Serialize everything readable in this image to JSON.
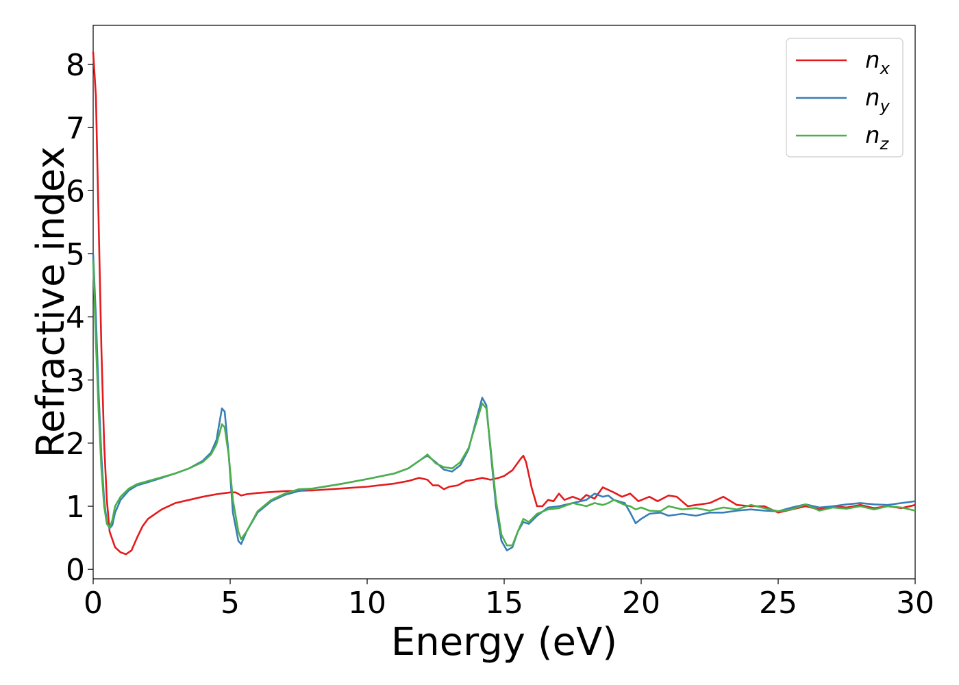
{
  "chart_data": {
    "type": "line",
    "xlabel": "Energy (eV)",
    "ylabel": "Refractive index",
    "xlim": [
      0,
      30
    ],
    "ylim": [
      -0.15,
      8.62
    ],
    "xticks": [
      0,
      5,
      10,
      15,
      20,
      25,
      30
    ],
    "yticks": [
      0,
      1,
      2,
      3,
      4,
      5,
      6,
      7,
      8
    ],
    "legend": "upper right",
    "series": [
      {
        "name": "nx",
        "color": "#e41a1c",
        "x": [
          0,
          0.1,
          0.2,
          0.3,
          0.4,
          0.5,
          0.6,
          0.8,
          1.0,
          1.2,
          1.4,
          1.6,
          1.8,
          2.0,
          2.5,
          3,
          3.5,
          4,
          4.5,
          5,
          5.2,
          5.4,
          5.6,
          6,
          7,
          8,
          9,
          10,
          11,
          11.5,
          11.9,
          12.2,
          12.4,
          12.6,
          12.8,
          13,
          13.3,
          13.6,
          13.9,
          14.2,
          14.5,
          14.8,
          15,
          15.3,
          15.6,
          15.7,
          15.8,
          16,
          16.2,
          16.4,
          16.6,
          16.8,
          17,
          17.2,
          17.5,
          17.8,
          18,
          18.3,
          18.6,
          19,
          19.3,
          19.6,
          19.9,
          20.3,
          20.6,
          21,
          21.3,
          21.7,
          22,
          22.5,
          23,
          23.5,
          24,
          24.5,
          25,
          25.5,
          26,
          26.5,
          27,
          27.5,
          28,
          28.5,
          29,
          29.5,
          30
        ],
        "values": [
          8.2,
          7.5,
          5.5,
          3.5,
          2.0,
          1.1,
          0.6,
          0.35,
          0.27,
          0.24,
          0.3,
          0.5,
          0.68,
          0.8,
          0.95,
          1.05,
          1.1,
          1.15,
          1.19,
          1.22,
          1.22,
          1.17,
          1.19,
          1.21,
          1.24,
          1.25,
          1.28,
          1.31,
          1.36,
          1.4,
          1.45,
          1.42,
          1.33,
          1.33,
          1.27,
          1.31,
          1.33,
          1.4,
          1.42,
          1.45,
          1.42,
          1.45,
          1.48,
          1.57,
          1.75,
          1.8,
          1.7,
          1.3,
          1.0,
          1.0,
          1.1,
          1.08,
          1.2,
          1.1,
          1.15,
          1.1,
          1.18,
          1.12,
          1.3,
          1.22,
          1.15,
          1.2,
          1.08,
          1.15,
          1.08,
          1.17,
          1.15,
          1.0,
          1.02,
          1.05,
          1.15,
          1.02,
          1.0,
          1.0,
          0.9,
          0.95,
          1.0,
          0.95,
          1.0,
          0.98,
          1.02,
          0.97,
          1.0,
          0.97,
          1.02
        ]
      },
      {
        "name": "ny",
        "color": "#377eb8",
        "x": [
          0,
          0.1,
          0.2,
          0.3,
          0.4,
          0.5,
          0.6,
          0.7,
          0.8,
          1.0,
          1.3,
          1.6,
          2,
          2.5,
          3,
          3.5,
          4,
          4.3,
          4.5,
          4.7,
          4.8,
          4.95,
          5.1,
          5.3,
          5.4,
          5.6,
          6,
          6.5,
          7,
          7.5,
          8,
          9,
          10,
          11,
          11.5,
          12,
          12.2,
          12.5,
          12.8,
          13.1,
          13.4,
          13.7,
          14,
          14.2,
          14.35,
          14.5,
          14.7,
          14.9,
          15.1,
          15.3,
          15.5,
          15.7,
          15.9,
          16.2,
          16.6,
          17,
          17.5,
          18,
          18.3,
          18.6,
          18.8,
          19,
          19.4,
          19.6,
          19.8,
          20,
          20.3,
          20.7,
          21,
          21.5,
          22,
          22.5,
          23,
          23.5,
          24,
          24.5,
          25,
          25.5,
          26,
          26.5,
          27,
          27.5,
          28,
          28.5,
          29,
          29.5,
          30
        ],
        "values": [
          5.0,
          4.0,
          2.8,
          1.8,
          1.1,
          0.75,
          0.65,
          0.7,
          0.9,
          1.1,
          1.25,
          1.33,
          1.38,
          1.45,
          1.52,
          1.6,
          1.72,
          1.85,
          2.05,
          2.55,
          2.5,
          1.8,
          0.9,
          0.45,
          0.4,
          0.6,
          0.9,
          1.08,
          1.18,
          1.24,
          1.28,
          1.35,
          1.43,
          1.52,
          1.6,
          1.75,
          1.8,
          1.7,
          1.58,
          1.55,
          1.65,
          1.9,
          2.4,
          2.72,
          2.6,
          1.9,
          1.0,
          0.45,
          0.3,
          0.35,
          0.6,
          0.75,
          0.72,
          0.85,
          0.98,
          1.0,
          1.05,
          1.1,
          1.2,
          1.15,
          1.17,
          1.1,
          1.05,
          0.9,
          0.73,
          0.8,
          0.88,
          0.9,
          0.85,
          0.88,
          0.85,
          0.9,
          0.9,
          0.93,
          0.95,
          0.93,
          0.92,
          0.98,
          1.03,
          0.98,
          1.0,
          1.03,
          1.05,
          1.03,
          1.02,
          1.05,
          1.08
        ]
      },
      {
        "name": "nz",
        "color": "#4daf4a",
        "x": [
          0,
          0.1,
          0.2,
          0.3,
          0.4,
          0.5,
          0.6,
          0.7,
          0.8,
          1.0,
          1.3,
          1.6,
          2,
          2.5,
          3,
          3.5,
          4,
          4.3,
          4.5,
          4.7,
          4.8,
          4.95,
          5.1,
          5.3,
          5.4,
          5.6,
          6,
          6.5,
          7,
          7.5,
          8,
          9,
          10,
          11,
          11.5,
          12,
          12.2,
          12.5,
          12.8,
          13.1,
          13.4,
          13.7,
          14,
          14.2,
          14.35,
          14.5,
          14.7,
          14.9,
          15.1,
          15.3,
          15.5,
          15.7,
          15.9,
          16.2,
          16.6,
          17,
          17.5,
          18,
          18.3,
          18.6,
          18.8,
          19,
          19.4,
          19.6,
          19.8,
          20,
          20.3,
          20.7,
          21,
          21.5,
          22,
          22.5,
          23,
          23.5,
          24,
          24.5,
          25,
          25.5,
          26,
          26.5,
          27,
          27.5,
          28,
          28.5,
          29,
          29.5,
          30
        ],
        "values": [
          4.9,
          3.6,
          2.5,
          1.6,
          1.0,
          0.72,
          0.66,
          0.78,
          1.0,
          1.15,
          1.28,
          1.35,
          1.4,
          1.46,
          1.52,
          1.6,
          1.7,
          1.82,
          1.98,
          2.3,
          2.25,
          1.8,
          1.1,
          0.6,
          0.48,
          0.6,
          0.92,
          1.1,
          1.2,
          1.27,
          1.28,
          1.35,
          1.43,
          1.52,
          1.6,
          1.75,
          1.82,
          1.68,
          1.62,
          1.6,
          1.7,
          1.92,
          2.35,
          2.63,
          2.55,
          1.95,
          1.1,
          0.55,
          0.38,
          0.38,
          0.6,
          0.8,
          0.75,
          0.88,
          0.95,
          0.97,
          1.05,
          1.0,
          1.05,
          1.02,
          1.05,
          1.1,
          1.02,
          1.0,
          0.95,
          0.98,
          0.93,
          0.92,
          1.0,
          0.95,
          0.97,
          0.93,
          0.98,
          0.95,
          1.02,
          0.97,
          0.92,
          0.95,
          1.03,
          0.93,
          0.98,
          0.96,
          1.0,
          0.95,
          1.0,
          0.98,
          0.93
        ]
      }
    ]
  }
}
